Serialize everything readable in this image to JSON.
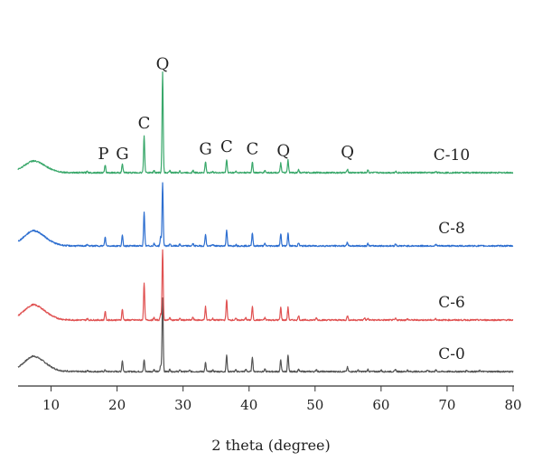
{
  "chart_data": {
    "type": "line",
    "xlabel": "2 theta (degree)",
    "ylabel": "",
    "xlim": [
      5,
      80
    ],
    "x_ticks": [
      10,
      20,
      30,
      40,
      50,
      60,
      70,
      80
    ],
    "grid": false,
    "legend": "none; series names printed at right end of each pattern",
    "series": [
      {
        "name": "C-0",
        "color": "#555555",
        "baseline": 0,
        "peaks": [
          [
            12.5,
            0.8
          ],
          [
            15.5,
            1.5
          ],
          [
            18.2,
            2
          ],
          [
            20.8,
            15
          ],
          [
            24.1,
            16
          ],
          [
            25.6,
            3
          ],
          [
            26.6,
            8
          ],
          [
            26.9,
            100
          ],
          [
            28.0,
            3
          ],
          [
            29.5,
            2
          ],
          [
            31.0,
            1.5
          ],
          [
            33.4,
            12
          ],
          [
            34.5,
            2
          ],
          [
            36.6,
            22
          ],
          [
            38.0,
            2
          ],
          [
            39.5,
            3
          ],
          [
            40.5,
            20
          ],
          [
            42.4,
            3
          ],
          [
            44.8,
            16
          ],
          [
            45.9,
            22
          ],
          [
            47.5,
            3
          ],
          [
            50.2,
            3
          ],
          [
            54.9,
            6
          ],
          [
            56.5,
            2
          ],
          [
            58.0,
            3
          ],
          [
            60.0,
            2
          ],
          [
            62.2,
            3
          ],
          [
            64.0,
            2
          ],
          [
            67.0,
            2
          ],
          [
            68.3,
            2
          ],
          [
            73.0,
            2
          ],
          [
            75.0,
            1.5
          ]
        ]
      },
      {
        "name": "C-6",
        "color": "#e05252",
        "baseline": 1,
        "peaks": [
          [
            15.5,
            2
          ],
          [
            18.2,
            12
          ],
          [
            20.8,
            15
          ],
          [
            24.1,
            50
          ],
          [
            25.6,
            3
          ],
          [
            26.6,
            8
          ],
          [
            26.9,
            95
          ],
          [
            28.0,
            3
          ],
          [
            29.5,
            2
          ],
          [
            31.5,
            4
          ],
          [
            33.4,
            18
          ],
          [
            34.5,
            2
          ],
          [
            36.6,
            28
          ],
          [
            38.0,
            2
          ],
          [
            39.5,
            3
          ],
          [
            40.5,
            18
          ],
          [
            42.4,
            3
          ],
          [
            44.8,
            17
          ],
          [
            45.9,
            17
          ],
          [
            47.5,
            6
          ],
          [
            50.2,
            3
          ],
          [
            54.9,
            6
          ],
          [
            57.5,
            3
          ],
          [
            58.0,
            2
          ],
          [
            62.2,
            2
          ],
          [
            64.0,
            1.5
          ],
          [
            68.3,
            2
          ]
        ]
      },
      {
        "name": "C-8",
        "color": "#2e6fd0",
        "baseline": 2,
        "peaks": [
          [
            15.5,
            2
          ],
          [
            18.2,
            12
          ],
          [
            20.8,
            14
          ],
          [
            24.1,
            45
          ],
          [
            25.6,
            3
          ],
          [
            26.6,
            12
          ],
          [
            26.9,
            85
          ],
          [
            28.0,
            3
          ],
          [
            29.5,
            2
          ],
          [
            31.5,
            3
          ],
          [
            33.4,
            16
          ],
          [
            34.5,
            2
          ],
          [
            36.6,
            22
          ],
          [
            38.0,
            2
          ],
          [
            40.5,
            18
          ],
          [
            42.4,
            3
          ],
          [
            44.8,
            17
          ],
          [
            45.9,
            17
          ],
          [
            47.5,
            4
          ],
          [
            54.9,
            5
          ],
          [
            58.0,
            3
          ],
          [
            62.2,
            3
          ],
          [
            68.3,
            2
          ]
        ]
      },
      {
        "name": "C-10",
        "color": "#3aa86b",
        "baseline": 3,
        "peaks": [
          [
            15.5,
            2
          ],
          [
            18.2,
            10
          ],
          [
            20.8,
            12
          ],
          [
            24.1,
            50
          ],
          [
            25.6,
            3
          ],
          [
            26.9,
            135
          ],
          [
            28.0,
            3
          ],
          [
            29.5,
            2
          ],
          [
            31.5,
            3
          ],
          [
            33.4,
            15
          ],
          [
            34.5,
            2
          ],
          [
            36.6,
            18
          ],
          [
            38.0,
            2
          ],
          [
            40.5,
            15
          ],
          [
            42.4,
            3
          ],
          [
            44.8,
            13
          ],
          [
            45.9,
            17
          ],
          [
            47.5,
            4
          ],
          [
            54.9,
            5
          ],
          [
            58.0,
            4
          ],
          [
            62.2,
            2
          ],
          [
            68.3,
            2
          ]
        ]
      }
    ],
    "annotations": [
      {
        "text": "P",
        "x": 18.2
      },
      {
        "text": "G",
        "x": 20.8
      },
      {
        "text": "C",
        "x": 24.1
      },
      {
        "text": "Q",
        "x": 26.9
      },
      {
        "text": "G",
        "x": 33.4
      },
      {
        "text": "C",
        "x": 36.6
      },
      {
        "text": "C",
        "x": 40.5
      },
      {
        "text": "Q",
        "x": 45.2
      },
      {
        "text": "Q",
        "x": 54.9
      }
    ]
  }
}
